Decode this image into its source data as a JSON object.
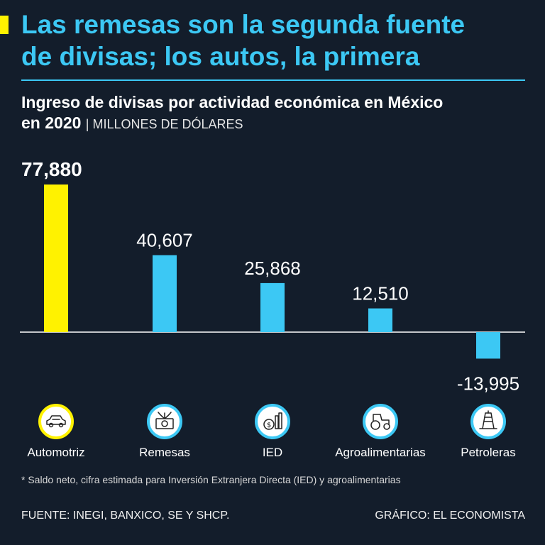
{
  "headline": {
    "line1": "Las remesas son la segunda fuente",
    "line2": "de divisas; los autos, la primera"
  },
  "subtitle": {
    "line1": "Ingreso de divisas por actividad económica en México",
    "line2": "en 2020",
    "units": "| MILLONES DE DÓLARES"
  },
  "chart_data": {
    "type": "bar",
    "title": "Ingreso de divisas por actividad económica en México en 2020",
    "ylabel": "Millones de dólares",
    "xlabel": "",
    "categories": [
      "Automotriz",
      "Remesas",
      "IED",
      "Agroalimentarias",
      "Petroleras"
    ],
    "values": [
      77880,
      40607,
      25868,
      12510,
      -13995
    ],
    "value_labels": [
      "77,880",
      "40,607",
      "25,868",
      "12,510",
      "-13,995"
    ],
    "icons": [
      "car-icon",
      "money-icon",
      "investment-icon",
      "tractor-icon",
      "oil-rig-icon"
    ],
    "highlight_index": 0,
    "ylim": [
      -20000,
      80000
    ],
    "grid": false
  },
  "colors": {
    "background": "#131d2b",
    "accent": "#3cc8f4",
    "highlight": "#fff200",
    "text": "#ffffff"
  },
  "footnote": "* Saldo neto, cifra estimada para Inversión Extranjera Directa (IED) y agroalimentarias",
  "footer": {
    "source": "FUENTE: INEGI, BANXICO, SE Y SHCP.",
    "credit": "GRÁFICO: EL ECONOMISTA"
  }
}
